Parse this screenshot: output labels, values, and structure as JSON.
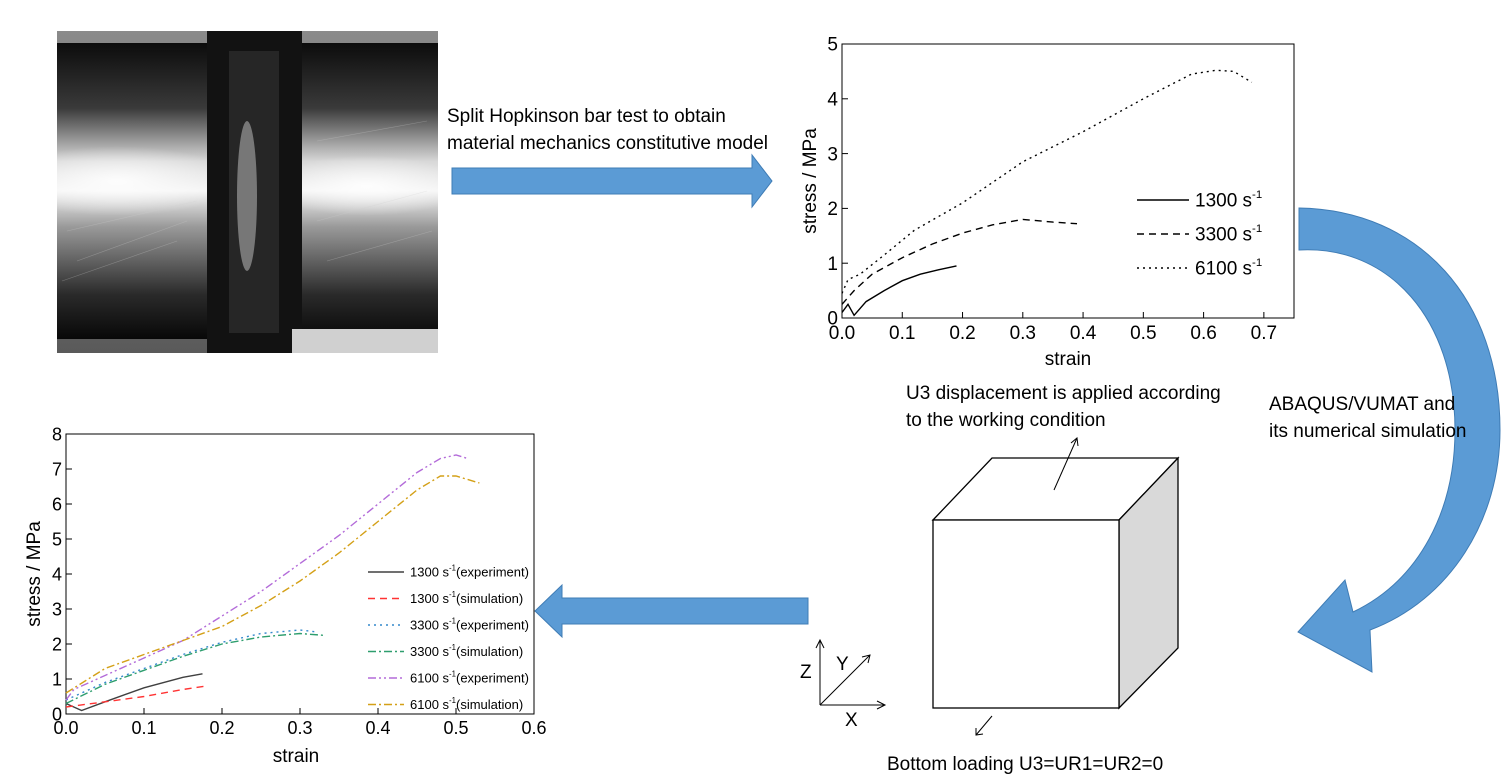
{
  "annotations": {
    "shpb_line1": "Split Hopkinson bar test to obtain",
    "shpb_line2": "material mechanics constitutive model",
    "abaqus_line1": "ABAQUS/VUMAT and",
    "abaqus_line2": "its numerical simulation",
    "u3_line1": "U3 displacement is applied according",
    "u3_line2": "to the working condition",
    "bottom": "Bottom loading U3=UR1=UR2=0",
    "axis_z": "Z",
    "axis_y": "Y",
    "axis_x": "X"
  },
  "colors": {
    "arrow_fill": "#5b9bd5",
    "arrow_dark": "#3f7cb5",
    "cube_side": "#d9d9d9"
  },
  "chart_data": [
    {
      "type": "line",
      "xlabel": "strain",
      "ylabel": "stress / MPa",
      "xlim": [
        0,
        0.75
      ],
      "ylim": [
        0,
        5
      ],
      "xticks": [
        "0.0",
        "0.1",
        "0.2",
        "0.3",
        "0.4",
        "0.5",
        "0.6",
        "0.7"
      ],
      "yticks": [
        "0",
        "1",
        "2",
        "3",
        "4",
        "5"
      ],
      "legend_position": "right",
      "series": [
        {
          "name": "1300 s",
          "sup": "-1",
          "dash": "solid",
          "color": "#000000",
          "x": [
            0,
            0.01,
            0.02,
            0.04,
            0.07,
            0.1,
            0.13,
            0.16,
            0.19
          ],
          "y": [
            0.1,
            0.25,
            0.05,
            0.3,
            0.5,
            0.68,
            0.8,
            0.88,
            0.95
          ]
        },
        {
          "name": "3300 s",
          "sup": "-1",
          "dash": "dashed",
          "color": "#000000",
          "x": [
            0,
            0.02,
            0.05,
            0.1,
            0.15,
            0.2,
            0.25,
            0.3,
            0.35,
            0.39
          ],
          "y": [
            0.25,
            0.5,
            0.8,
            1.1,
            1.35,
            1.55,
            1.7,
            1.8,
            1.75,
            1.72
          ]
        },
        {
          "name": "6100 s",
          "sup": "-1",
          "dash": "dotted",
          "color": "#000000",
          "x": [
            0,
            0.01,
            0.03,
            0.07,
            0.12,
            0.2,
            0.3,
            0.4,
            0.5,
            0.58,
            0.62,
            0.65,
            0.68
          ],
          "y": [
            0.45,
            0.7,
            0.8,
            1.15,
            1.6,
            2.1,
            2.85,
            3.4,
            4.0,
            4.45,
            4.52,
            4.5,
            4.3
          ]
        }
      ]
    },
    {
      "type": "line",
      "xlabel": "strain",
      "ylabel": "stress / MPa",
      "xlim": [
        0,
        0.6
      ],
      "ylim": [
        0,
        8
      ],
      "xticks": [
        "0.0",
        "0.1",
        "0.2",
        "0.3",
        "0.4",
        "0.5",
        "0.6"
      ],
      "yticks": [
        "0",
        "1",
        "2",
        "3",
        "4",
        "5",
        "6",
        "7",
        "8"
      ],
      "legend_position": "right",
      "series": [
        {
          "name": "1300 s",
          "sup": "-1",
          "suffix": "(experiment)",
          "dash": "solid",
          "color": "#404040",
          "x": [
            0,
            0.02,
            0.05,
            0.1,
            0.15,
            0.175
          ],
          "y": [
            0.3,
            0.1,
            0.35,
            0.75,
            1.05,
            1.15
          ]
        },
        {
          "name": "1300 s",
          "sup": "-1",
          "suffix": "(simulation)",
          "dash": "dashed",
          "color": "#ff3333",
          "x": [
            0,
            0.05,
            0.1,
            0.15,
            0.18
          ],
          "y": [
            0.2,
            0.35,
            0.5,
            0.7,
            0.8
          ]
        },
        {
          "name": "3300 s",
          "sup": "-1",
          "suffix": "(experiment)",
          "dash": "dotted",
          "color": "#3388cc",
          "x": [
            0,
            0.05,
            0.1,
            0.15,
            0.2,
            0.25,
            0.3,
            0.32
          ],
          "y": [
            0.4,
            0.9,
            1.3,
            1.7,
            2.05,
            2.3,
            2.4,
            2.35
          ]
        },
        {
          "name": "3300 s",
          "sup": "-1",
          "suffix": "(simulation)",
          "dash": "dashdot",
          "color": "#2e9e6e",
          "x": [
            0,
            0.05,
            0.1,
            0.15,
            0.2,
            0.25,
            0.3,
            0.33
          ],
          "y": [
            0.3,
            0.85,
            1.25,
            1.65,
            2.0,
            2.2,
            2.3,
            2.25
          ]
        },
        {
          "name": "6100 s",
          "sup": "-1",
          "suffix": "(experiment)",
          "dash": "dashdotdot",
          "color": "#b36bd9",
          "x": [
            0,
            0.01,
            0.05,
            0.1,
            0.15,
            0.2,
            0.25,
            0.3,
            0.35,
            0.4,
            0.45,
            0.48,
            0.5,
            0.515
          ],
          "y": [
            0.4,
            0.7,
            1.1,
            1.6,
            2.1,
            2.8,
            3.5,
            4.3,
            5.1,
            6.0,
            6.9,
            7.3,
            7.4,
            7.3
          ]
        },
        {
          "name": "6100 s",
          "sup": "-1",
          "suffix": "(simulation)",
          "dash": "dashdot",
          "color": "#d4a017",
          "x": [
            0,
            0.05,
            0.1,
            0.15,
            0.2,
            0.25,
            0.3,
            0.35,
            0.4,
            0.45,
            0.48,
            0.5,
            0.53
          ],
          "y": [
            0.6,
            1.3,
            1.7,
            2.1,
            2.5,
            3.1,
            3.8,
            4.6,
            5.5,
            6.4,
            6.8,
            6.8,
            6.6
          ]
        }
      ]
    }
  ]
}
